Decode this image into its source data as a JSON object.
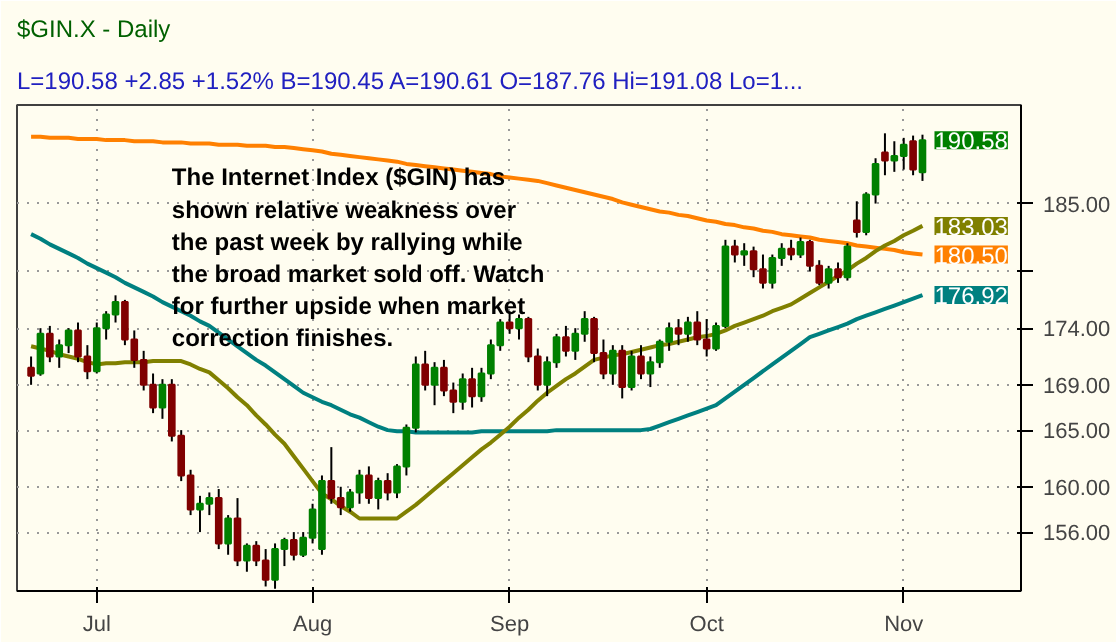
{
  "chart_data": {
    "type": "candlestick",
    "title": "$GIN.X - Daily",
    "subtitle": "L=190.58 +2.85 +1.52% B=190.45 A=190.61 O=187.76 Hi=191.08 Lo=1...",
    "categories": [
      null,
      null,
      null,
      null,
      null,
      null,
      null,
      "Jul",
      null,
      null,
      null,
      null,
      null,
      null,
      null,
      null,
      null,
      null,
      null,
      null,
      null,
      null,
      null,
      null,
      null,
      null,
      null,
      null,
      null,
      null,
      "Aug",
      null,
      null,
      null,
      null,
      null,
      null,
      null,
      null,
      null,
      null,
      null,
      null,
      null,
      null,
      null,
      null,
      null,
      null,
      null,
      null,
      "Sep",
      null,
      null,
      null,
      null,
      null,
      null,
      null,
      null,
      null,
      null,
      null,
      null,
      null,
      null,
      null,
      null,
      null,
      null,
      null,
      null,
      "Oct",
      null,
      null,
      null,
      null,
      null,
      null,
      null,
      null,
      null,
      null,
      null,
      null,
      null,
      null,
      null,
      null,
      null,
      null,
      null,
      null,
      "Nov",
      null,
      null
    ],
    "ohlc": [
      [
        170.5,
        171.5,
        169.0,
        169.8
      ],
      [
        170.0,
        174.0,
        169.8,
        173.5
      ],
      [
        173.5,
        174.2,
        171.0,
        171.5
      ],
      [
        171.5,
        173.0,
        170.5,
        172.5
      ],
      [
        172.5,
        174.0,
        171.8,
        173.8
      ],
      [
        173.8,
        174.5,
        171.0,
        171.5
      ],
      [
        171.5,
        172.5,
        169.5,
        170.2
      ],
      [
        170.2,
        174.5,
        170.0,
        174.0
      ],
      [
        174.0,
        175.5,
        173.0,
        175.2
      ],
      [
        175.2,
        176.9,
        174.5,
        176.3
      ],
      [
        176.3,
        176.5,
        172.5,
        173.0
      ],
      [
        173.0,
        173.8,
        170.5,
        171.2
      ],
      [
        171.2,
        172.0,
        168.5,
        169.0
      ],
      [
        169.0,
        170.0,
        166.5,
        167.0
      ],
      [
        167.0,
        169.5,
        166.0,
        169.0
      ],
      [
        169.0,
        169.5,
        164.0,
        164.5
      ],
      [
        164.5,
        165.0,
        160.5,
        161.0
      ],
      [
        161.0,
        161.5,
        157.5,
        158.0
      ],
      [
        158.0,
        159.2,
        156.0,
        158.5
      ],
      [
        158.5,
        159.5,
        157.5,
        159.0
      ],
      [
        159.0,
        159.8,
        154.5,
        155.0
      ],
      [
        155.0,
        157.5,
        154.0,
        157.2
      ],
      [
        157.2,
        159.0,
        153.0,
        153.5
      ],
      [
        153.5,
        155.0,
        152.5,
        154.8
      ],
      [
        154.8,
        155.2,
        153.0,
        153.5
      ],
      [
        153.5,
        154.5,
        151.2,
        151.8
      ],
      [
        151.8,
        155.0,
        151.0,
        154.5
      ],
      [
        154.5,
        155.5,
        153.0,
        155.3
      ],
      [
        155.3,
        156.0,
        153.5,
        154.0
      ],
      [
        154.0,
        156.0,
        153.8,
        155.5
      ],
      [
        155.5,
        158.5,
        155.0,
        158.0
      ],
      [
        154.5,
        161.0,
        154.0,
        160.5
      ],
      [
        160.5,
        163.5,
        158.5,
        159.0
      ],
      [
        159.0,
        160.0,
        157.5,
        158.2
      ],
      [
        158.2,
        159.8,
        157.8,
        159.5
      ],
      [
        159.5,
        161.5,
        158.5,
        161.0
      ],
      [
        161.0,
        161.8,
        158.5,
        159.0
      ],
      [
        159.0,
        160.8,
        158.0,
        160.5
      ],
      [
        160.5,
        161.2,
        158.8,
        159.5
      ],
      [
        159.5,
        162.0,
        159.0,
        161.8
      ],
      [
        161.8,
        165.5,
        161.0,
        165.2
      ],
      [
        165.2,
        171.5,
        164.8,
        170.8
      ],
      [
        170.8,
        172.0,
        168.5,
        169.0
      ],
      [
        169.0,
        171.0,
        167.2,
        170.5
      ],
      [
        170.5,
        171.2,
        168.0,
        168.5
      ],
      [
        168.5,
        169.2,
        166.5,
        167.5
      ],
      [
        167.5,
        170.0,
        166.8,
        169.5
      ],
      [
        169.5,
        170.5,
        167.0,
        168.0
      ],
      [
        168.0,
        170.5,
        167.5,
        170.0
      ],
      [
        170.0,
        173.0,
        169.5,
        172.5
      ],
      [
        172.5,
        174.8,
        172.0,
        174.5
      ],
      [
        174.5,
        175.5,
        173.5,
        174.0
      ],
      [
        174.0,
        175.2,
        173.0,
        174.8
      ],
      [
        174.8,
        175.0,
        171.0,
        171.5
      ],
      [
        171.5,
        172.2,
        168.5,
        169.0
      ],
      [
        169.0,
        171.5,
        168.0,
        171.0
      ],
      [
        171.0,
        173.5,
        170.5,
        173.2
      ],
      [
        173.2,
        174.2,
        171.5,
        172.0
      ],
      [
        172.0,
        174.0,
        171.2,
        173.5
      ],
      [
        173.5,
        175.5,
        172.8,
        174.8
      ],
      [
        174.8,
        175.0,
        171.0,
        171.8
      ],
      [
        171.8,
        173.0,
        169.5,
        170.0
      ],
      [
        170.0,
        172.5,
        169.0,
        172.0
      ],
      [
        172.0,
        172.5,
        167.8,
        168.8
      ],
      [
        168.8,
        172.0,
        168.5,
        171.5
      ],
      [
        171.5,
        172.5,
        169.5,
        170.0
      ],
      [
        170.0,
        171.5,
        168.8,
        171.0
      ],
      [
        171.0,
        173.0,
        170.5,
        172.8
      ],
      [
        172.8,
        174.5,
        172.0,
        174.0
      ],
      [
        174.0,
        174.8,
        172.5,
        173.5
      ],
      [
        173.5,
        175.0,
        172.8,
        174.5
      ],
      [
        174.5,
        175.5,
        172.5,
        173.0
      ],
      [
        173.0,
        174.8,
        171.5,
        172.2
      ],
      [
        172.2,
        174.5,
        172.0,
        174.2
      ],
      [
        174.2,
        181.8,
        174.0,
        181.2
      ],
      [
        181.2,
        181.8,
        179.8,
        180.5
      ],
      [
        180.5,
        181.5,
        179.5,
        180.8
      ],
      [
        180.8,
        181.2,
        178.5,
        179.2
      ],
      [
        179.2,
        180.5,
        177.5,
        178.0
      ],
      [
        178.0,
        180.5,
        177.5,
        180.2
      ],
      [
        180.2,
        181.5,
        179.5,
        181.0
      ],
      [
        181.0,
        181.8,
        180.0,
        180.5
      ],
      [
        180.5,
        182.0,
        180.2,
        181.6
      ],
      [
        181.6,
        181.8,
        179.0,
        179.5
      ],
      [
        179.5,
        180.0,
        177.8,
        178.0
      ],
      [
        178.0,
        179.5,
        177.5,
        179.2
      ],
      [
        179.2,
        179.8,
        178.0,
        178.5
      ],
      [
        178.5,
        181.5,
        178.2,
        181.2
      ],
      [
        183.5,
        185.2,
        182.0,
        182.5
      ],
      [
        182.5,
        186.0,
        182.2,
        185.8
      ],
      [
        185.8,
        189.0,
        185.0,
        188.5
      ],
      [
        189.5,
        191.2,
        187.5,
        188.8
      ],
      [
        188.8,
        190.5,
        187.8,
        189.2
      ],
      [
        189.2,
        190.8,
        188.0,
        190.2
      ],
      [
        190.5,
        191.0,
        187.5,
        188.0
      ],
      [
        187.76,
        191.08,
        187.0,
        190.58
      ]
    ],
    "colors": [
      "#800000",
      "#008000",
      "#800000",
      "#008000",
      "#008000",
      "#800000",
      "#800000",
      "#008000",
      "#008000",
      "#008000",
      "#800000",
      "#800000",
      "#800000",
      "#800000",
      "#008000",
      "#800000",
      "#800000",
      "#800000",
      "#008000",
      "#008000",
      "#800000",
      "#008000",
      "#800000",
      "#008000",
      "#800000",
      "#800000",
      "#008000",
      "#008000",
      "#800000",
      "#008000",
      "#008000",
      "#008000",
      "#800000",
      "#800000",
      "#008000",
      "#008000",
      "#800000",
      "#008000",
      "#800000",
      "#008000",
      "#008000",
      "#008000",
      "#800000",
      "#008000",
      "#800000",
      "#800000",
      "#008000",
      "#800000",
      "#008000",
      "#008000",
      "#008000",
      "#800000",
      "#008000",
      "#800000",
      "#800000",
      "#008000",
      "#008000",
      "#800000",
      "#008000",
      "#008000",
      "#800000",
      "#800000",
      "#008000",
      "#800000",
      "#008000",
      "#800000",
      "#008000",
      "#008000",
      "#008000",
      "#800000",
      "#008000",
      "#800000",
      "#800000",
      "#008000",
      "#008000",
      "#800000",
      "#008000",
      "#800000",
      "#800000",
      "#008000",
      "#008000",
      "#800000",
      "#008000",
      "#800000",
      "#800000",
      "#008000",
      "#800000",
      "#008000",
      "#800000",
      "#008000",
      "#008000",
      "#800000",
      "#008000",
      "#008000",
      "#800000",
      "#008000"
    ],
    "series": [
      {
        "type": "line",
        "color": "#ff8000",
        "value_labels": [
          null,
          null,
          null,
          null,
          null,
          null,
          null,
          null,
          null,
          null,
          null,
          null,
          null,
          null,
          null,
          null,
          null,
          null,
          null,
          null,
          null,
          null,
          null,
          null,
          null,
          null,
          null,
          null,
          null,
          null,
          null,
          null,
          null,
          null,
          null,
          null,
          null,
          null,
          null,
          null,
          null,
          null,
          null,
          null,
          null,
          null,
          null,
          null,
          null,
          null,
          null,
          null,
          null,
          null,
          null,
          null,
          null,
          null,
          null,
          null,
          null,
          null,
          null,
          null,
          null,
          null,
          null,
          null,
          null,
          null,
          null,
          null,
          null,
          null,
          null,
          null,
          null,
          null,
          null,
          null,
          null,
          null,
          null,
          null,
          null,
          null,
          null,
          null,
          null,
          null,
          null,
          null,
          null,
          null,
          null,
          "180.50"
        ],
        "values": [
          190.9,
          190.9,
          190.8,
          190.8,
          190.8,
          190.7,
          190.7,
          190.7,
          190.6,
          190.6,
          190.6,
          190.5,
          190.5,
          190.5,
          190.4,
          190.4,
          190.4,
          190.3,
          190.3,
          190.3,
          190.2,
          190.2,
          190.2,
          190.1,
          190.1,
          190.1,
          190.0,
          190.0,
          189.9,
          189.8,
          189.7,
          189.6,
          189.4,
          189.3,
          189.2,
          189.1,
          189.0,
          188.9,
          188.8,
          188.7,
          188.5,
          188.4,
          188.3,
          188.2,
          188.1,
          188.0,
          187.9,
          187.8,
          187.7,
          187.6,
          187.4,
          187.3,
          187.2,
          187.1,
          187.0,
          186.8,
          186.6,
          186.4,
          186.2,
          186.0,
          185.8,
          185.6,
          185.4,
          185.1,
          184.9,
          184.7,
          184.5,
          184.3,
          184.2,
          184.0,
          183.9,
          183.7,
          183.5,
          183.4,
          183.2,
          183.1,
          182.9,
          182.8,
          182.6,
          182.5,
          182.3,
          182.2,
          182.1,
          182.0,
          181.8,
          181.7,
          181.6,
          181.5,
          181.3,
          181.2,
          181.1,
          181.0,
          180.9,
          180.7,
          180.6,
          180.5
        ]
      },
      {
        "type": "line",
        "color": "#008080",
        "value_labels": [
          null,
          null,
          null,
          null,
          null,
          null,
          null,
          null,
          null,
          null,
          null,
          null,
          null,
          null,
          null,
          null,
          null,
          null,
          null,
          null,
          null,
          null,
          null,
          null,
          null,
          null,
          null,
          null,
          null,
          null,
          null,
          null,
          null,
          null,
          null,
          null,
          null,
          null,
          null,
          null,
          null,
          null,
          null,
          null,
          null,
          null,
          null,
          null,
          null,
          null,
          null,
          null,
          null,
          null,
          null,
          null,
          null,
          null,
          null,
          null,
          null,
          null,
          null,
          null,
          null,
          null,
          null,
          null,
          null,
          null,
          null,
          null,
          null,
          null,
          null,
          null,
          null,
          null,
          null,
          null,
          null,
          null,
          null,
          null,
          null,
          null,
          null,
          null,
          null,
          null,
          null,
          null,
          null,
          null,
          null,
          "176.92"
        ],
        "values": [
          182.3,
          181.9,
          181.4,
          181.0,
          180.6,
          180.2,
          179.7,
          179.3,
          178.9,
          178.5,
          178.0,
          177.6,
          177.2,
          176.8,
          176.3,
          175.9,
          175.5,
          175.1,
          174.6,
          174.2,
          173.6,
          173.0,
          172.4,
          171.8,
          171.2,
          170.7,
          170.1,
          169.5,
          168.9,
          168.3,
          167.9,
          167.5,
          167.2,
          166.8,
          166.4,
          166.1,
          165.7,
          165.3,
          165.0,
          164.9,
          164.9,
          164.8,
          164.8,
          164.8,
          164.8,
          164.8,
          164.8,
          164.8,
          164.9,
          164.9,
          164.9,
          164.9,
          164.9,
          164.9,
          164.9,
          164.9,
          165.0,
          165.0,
          165.0,
          165.0,
          165.0,
          165.0,
          165.0,
          165.0,
          165.0,
          165.0,
          165.1,
          165.4,
          165.7,
          166.0,
          166.3,
          166.6,
          166.9,
          167.2,
          167.8,
          168.4,
          169.0,
          169.6,
          170.2,
          170.8,
          171.4,
          172.0,
          172.6,
          173.2,
          173.5,
          173.8,
          174.1,
          174.4,
          174.8,
          175.1,
          175.4,
          175.7,
          176.0,
          176.3,
          176.6,
          176.92
        ]
      },
      {
        "type": "line",
        "color": "#808000",
        "value_labels": [
          null,
          null,
          null,
          null,
          null,
          null,
          null,
          null,
          null,
          null,
          null,
          null,
          null,
          null,
          null,
          null,
          null,
          null,
          null,
          null,
          null,
          null,
          null,
          null,
          null,
          null,
          null,
          null,
          null,
          null,
          null,
          null,
          null,
          null,
          null,
          null,
          null,
          null,
          null,
          null,
          null,
          null,
          null,
          null,
          null,
          null,
          null,
          null,
          null,
          null,
          null,
          null,
          null,
          null,
          null,
          null,
          null,
          null,
          null,
          null,
          null,
          null,
          null,
          null,
          null,
          null,
          null,
          null,
          null,
          null,
          null,
          null,
          null,
          null,
          null,
          null,
          null,
          null,
          null,
          null,
          null,
          null,
          null,
          null,
          null,
          null,
          null,
          null,
          null,
          null,
          null,
          null,
          null,
          null,
          null,
          "183.03"
        ],
        "values": [
          172.4,
          172.2,
          172.0,
          171.7,
          171.5,
          171.3,
          171.0,
          170.8,
          170.9,
          170.9,
          171.0,
          171.0,
          171.0,
          171.1,
          171.1,
          171.1,
          171.1,
          170.8,
          170.4,
          170.1,
          169.4,
          168.7,
          167.9,
          167.2,
          166.3,
          165.5,
          164.6,
          163.8,
          162.7,
          161.6,
          160.5,
          159.4,
          158.9,
          158.3,
          157.8,
          157.2,
          157.2,
          157.2,
          157.2,
          157.2,
          157.8,
          158.4,
          159.1,
          159.8,
          160.5,
          161.2,
          161.9,
          162.6,
          163.3,
          163.9,
          164.6,
          165.3,
          166.1,
          166.8,
          167.6,
          168.3,
          168.9,
          169.5,
          170.0,
          170.6,
          171.2,
          171.4,
          171.6,
          171.7,
          171.9,
          172.1,
          172.3,
          172.5,
          172.6,
          172.8,
          173.0,
          173.2,
          173.3,
          173.5,
          173.8,
          174.2,
          174.5,
          174.8,
          175.1,
          175.5,
          175.8,
          176.1,
          176.6,
          177.1,
          177.6,
          178.1,
          178.6,
          179.1,
          179.7,
          180.2,
          180.8,
          181.3,
          181.7,
          182.2,
          182.6,
          183.03
        ]
      }
    ],
    "ylim": [
      150.8,
      193.7
    ],
    "yticks": [
      {
        "value": 156,
        "label": "156.00"
      },
      {
        "value": 160,
        "label": "160.00"
      },
      {
        "value": 165,
        "label": "165.00"
      },
      {
        "value": 169,
        "label": "169.00"
      },
      {
        "value": 174,
        "label": "174.00"
      },
      {
        "value": 179,
        "label": null
      },
      {
        "value": 185,
        "label": "185.00"
      }
    ],
    "grid": true,
    "value_labels": [
      null,
      null,
      null,
      null,
      null,
      null,
      null,
      null,
      null,
      null,
      null,
      null,
      null,
      null,
      null,
      null,
      null,
      null,
      null,
      null,
      null,
      null,
      null,
      null,
      null,
      null,
      null,
      null,
      null,
      null,
      null,
      null,
      null,
      null,
      null,
      null,
      null,
      null,
      null,
      null,
      null,
      null,
      null,
      null,
      null,
      null,
      null,
      null,
      null,
      null,
      null,
      null,
      null,
      null,
      null,
      null,
      null,
      null,
      null,
      null,
      null,
      null,
      null,
      null,
      null,
      null,
      null,
      null,
      null,
      null,
      null,
      null,
      null,
      null,
      null,
      null,
      null,
      null,
      null,
      null,
      null,
      null,
      null,
      null,
      null,
      null,
      null,
      null,
      null,
      null,
      null,
      null,
      null,
      null,
      null,
      "190.58"
    ],
    "annotations": [
      "The Internet Index ($GIN) has\nshown relative weakness over\nthe past week by rallying while\nthe broad market sold off.  Watch\nfor further upside when market\ncorrection finishes."
    ]
  }
}
